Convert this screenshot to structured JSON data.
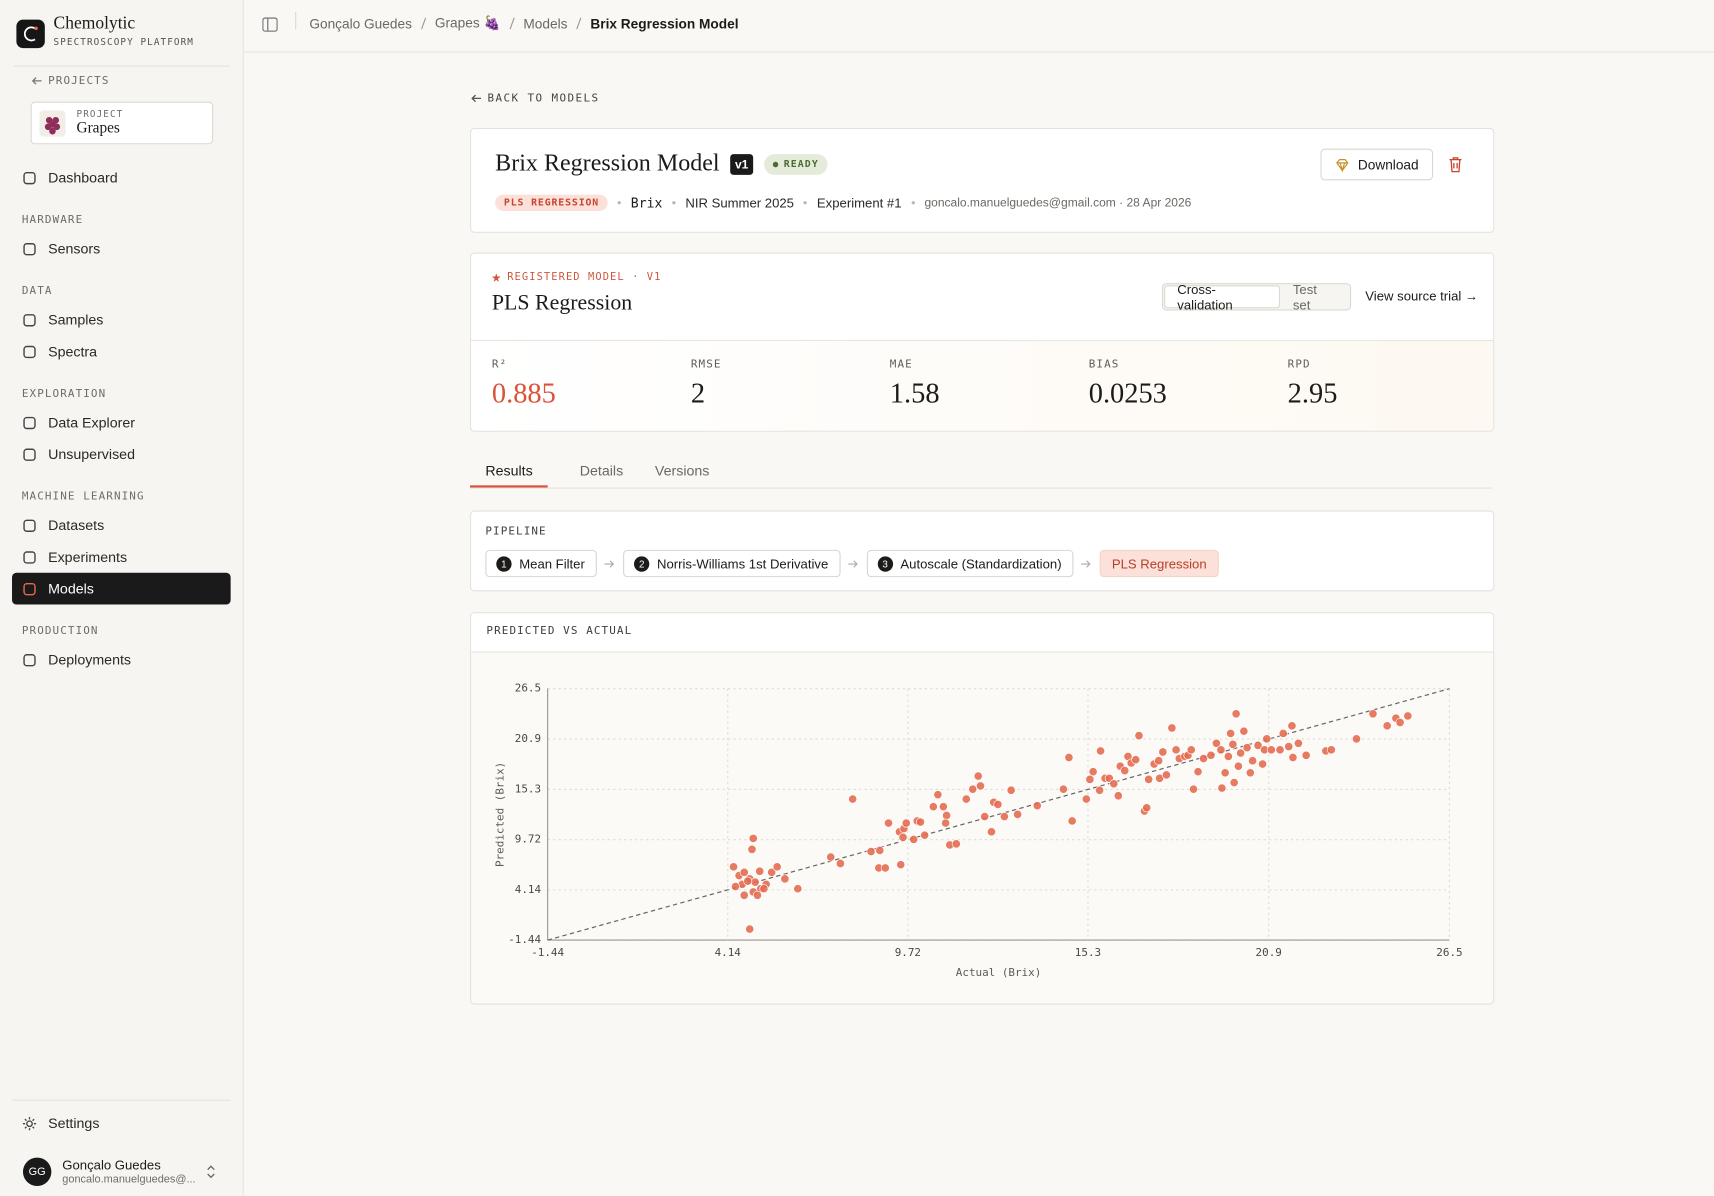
{
  "sidebar": {
    "brand": "Chemolytic",
    "tagline": "SPECTROSCOPY PLATFORM",
    "back": "PROJECTS",
    "project_label": "PROJECT",
    "project_name": "Grapes",
    "dashboard": "Dashboard",
    "groups": [
      {
        "heading": "HARDWARE",
        "items": [
          {
            "label": "Sensors"
          }
        ]
      },
      {
        "heading": "DATA",
        "items": [
          {
            "label": "Samples"
          },
          {
            "label": "Spectra"
          }
        ]
      },
      {
        "heading": "EXPLORATION",
        "items": [
          {
            "label": "Data Explorer"
          },
          {
            "label": "Unsupervised"
          }
        ]
      },
      {
        "heading": "MACHINE LEARNING",
        "items": [
          {
            "label": "Datasets"
          },
          {
            "label": "Experiments"
          },
          {
            "label": "Models",
            "active": true
          }
        ]
      },
      {
        "heading": "PRODUCTION",
        "items": [
          {
            "label": "Deployments"
          }
        ]
      }
    ],
    "settings": "Settings",
    "user": {
      "initials": "GG",
      "name": "Gonçalo Guedes",
      "email": "goncalo.manuelguedes@..."
    }
  },
  "breadcrumb": [
    "Gonçalo Guedes",
    "Grapes 🍇",
    "Models",
    "Brix Regression Model"
  ],
  "model": {
    "back": "BACK TO MODELS",
    "title": "Brix Regression Model",
    "version": "v1",
    "status": "READY",
    "tag": "PLS REGRESSION",
    "meta": [
      "Brix",
      "NIR Summer 2025",
      "Experiment #1",
      "goncalo.manuelguedes@gmail.com · 28 Apr 2026"
    ],
    "download": "Download"
  },
  "registered": {
    "label": "REGISTERED MODEL · V1",
    "title": "PLS Regression",
    "toggle": [
      "Cross-validation",
      "Test set"
    ],
    "link": "View source trial →",
    "metrics": [
      {
        "label": "R²",
        "value": 0.885
      },
      {
        "label": "RMSE",
        "value": 2
      },
      {
        "label": "MAE",
        "value": 1.58
      },
      {
        "label": "BIAS",
        "value": 0.0253
      },
      {
        "label": "RPD",
        "value": 2.95
      }
    ]
  },
  "tabs": [
    "Results",
    "Details",
    "Versions"
  ],
  "pipeline": {
    "title": "PIPELINE",
    "steps": [
      {
        "number": 1,
        "label": "Mean Filter"
      },
      {
        "number": 2,
        "label": "Norris-Williams 1st Derivative"
      },
      {
        "number": 3,
        "label": "Autoscale (Standardization)"
      }
    ],
    "final": "PLS Regression"
  },
  "chart_data": {
    "type": "scatter",
    "title": "PREDICTED VS ACTUAL",
    "x_label": "Actual (Brix)",
    "y_label": "Predicted (Brix)",
    "color": "#e4694d",
    "grid": true,
    "diagonal": true,
    "xlim": [
      -1.44,
      26.5
    ],
    "ylim": [
      -1.44,
      26.5
    ],
    "xticks": [
      -1.44,
      4.14,
      9.72,
      15.3,
      20.9,
      26.5
    ],
    "yticks": [
      -1.44,
      4.14,
      9.72,
      15.3,
      20.9,
      26.5
    ],
    "x": [
      4.32,
      4.49,
      4.65,
      4.82,
      4.59,
      4.38,
      4.99,
      5.16,
      4.93,
      4.65,
      5.33,
      5.13,
      5.5,
      5.67,
      5.91,
      6.31,
      4.93,
      4.89,
      4.82,
      5.06,
      5.26,
      4.76,
      7.33,
      7.63,
      8.01,
      8.58,
      8.85,
      8.82,
      9.02,
      9.5,
      9.12,
      9.46,
      9.6,
      9.67,
      9.57,
      9.9,
      10.01,
      10.11,
      10.24,
      10.51,
      10.65,
      10.82,
      10.92,
      10.89,
      11.02,
      11.22,
      11.53,
      11.73,
      11.9,
      11.97,
      12.1,
      12.31,
      12.38,
      12.51,
      12.71,
      12.92,
      13.12,
      13.73,
      14.54,
      14.81,
      14.71,
      15.25,
      15.36,
      15.46,
      15.69,
      15.66,
      15.83,
      15.96,
      16.1,
      16.24,
      16.3,
      16.44,
      16.54,
      16.64,
      16.78,
      16.88,
      17.05,
      17.12,
      17.18,
      17.35,
      17.49,
      17.62,
      17.52,
      17.73,
      17.9,
      18.03,
      18.13,
      18.3,
      18.4,
      18.5,
      18.57,
      18.71,
      18.88,
      19.11,
      19.28,
      19.42,
      19.45,
      19.55,
      19.65,
      19.72,
      19.79,
      19.83,
      19.89,
      19.96,
      20.03,
      20.13,
      20.23,
      20.4,
      20.57,
      20.71,
      20.77,
      20.84,
      20.98,
      21.25,
      21.35,
      21.52,
      21.62,
      21.82,
      21.65,
      22.67,
      22.84,
      23.62,
      24.13,
      24.57,
      24.84,
      24.97,
      25.21,
      22.06,
      20.33
    ],
    "values": [
      6.7,
      5.73,
      6.09,
      5.36,
      4.76,
      4.51,
      5.0,
      4.27,
      3.91,
      3.54,
      4.76,
      6.21,
      6.09,
      6.7,
      5.36,
      4.27,
      9.86,
      8.64,
      -0.22,
      3.54,
      4.27,
      5.12,
      7.79,
      7.07,
      14.23,
      8.4,
      8.52,
      6.58,
      6.58,
      6.94,
      11.56,
      10.59,
      10.95,
      11.56,
      9.98,
      9.74,
      11.8,
      11.68,
      10.22,
      13.38,
      14.72,
      13.38,
      12.41,
      11.56,
      9.13,
      9.25,
      14.23,
      15.33,
      16.79,
      15.69,
      12.29,
      10.59,
      13.87,
      13.63,
      12.29,
      15.21,
      12.53,
      13.5,
      15.33,
      11.8,
      18.85,
      14.23,
      16.42,
      17.27,
      19.58,
      15.21,
      16.54,
      16.54,
      15.93,
      14.6,
      17.88,
      17.39,
      18.97,
      18.24,
      18.61,
      21.28,
      12.9,
      13.26,
      16.42,
      18.12,
      18.49,
      19.46,
      16.54,
      16.91,
      22.13,
      19.7,
      18.73,
      18.97,
      19.09,
      19.7,
      15.33,
      17.27,
      18.73,
      19.09,
      20.43,
      19.7,
      15.45,
      17.15,
      18.97,
      21.52,
      20.31,
      16.06,
      23.71,
      17.88,
      19.34,
      21.77,
      19.94,
      18.49,
      20.19,
      18.12,
      19.7,
      20.92,
      19.7,
      19.7,
      21.52,
      20.06,
      22.37,
      20.43,
      18.85,
      19.58,
      19.7,
      20.92,
      23.71,
      22.37,
      23.22,
      22.74,
      23.47,
      19.09,
      17.15
    ]
  }
}
